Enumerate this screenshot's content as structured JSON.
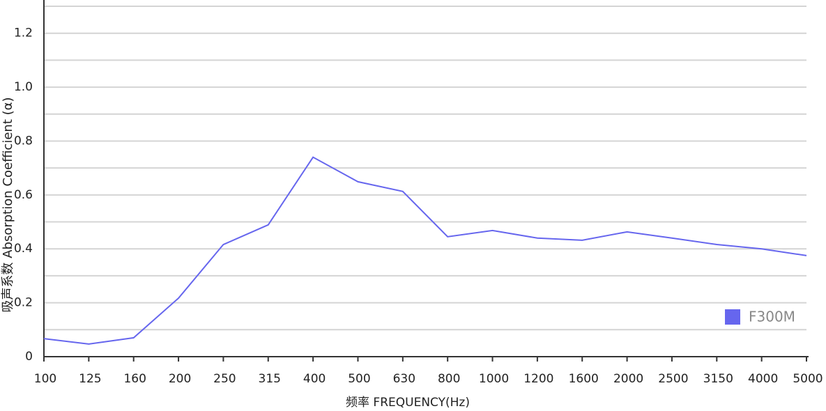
{
  "chart_data": {
    "type": "line",
    "x_label": "频率 FREQUENCY(Hz)",
    "y_label": "吸声系数 Absorption Coefficient (α)",
    "categories": [
      "100",
      "125",
      "160",
      "200",
      "250",
      "315",
      "400",
      "500",
      "630",
      "800",
      "1000",
      "1200",
      "1600",
      "2000",
      "2500",
      "3150",
      "4000",
      "5000"
    ],
    "series": [
      {
        "name": "F300M",
        "color": "#6666ee",
        "values": [
          0.067,
          0.047,
          0.07,
          0.217,
          0.416,
          0.489,
          0.74,
          0.649,
          0.613,
          0.445,
          0.468,
          0.44,
          0.432,
          0.463,
          0.44,
          0.416,
          0.4,
          0.375
        ]
      }
    ],
    "ylim": [
      0,
      1.3
    ],
    "yticks": [
      0,
      0.2,
      0.4,
      0.6,
      0.8,
      {
        "value": 1,
        "label": "1.0"
      },
      1.2
    ],
    "minor_grid": [
      0.1,
      0.3,
      0.5,
      0.7,
      0.9,
      1.1,
      1.3
    ],
    "grid": true,
    "legend": "lower right"
  }
}
